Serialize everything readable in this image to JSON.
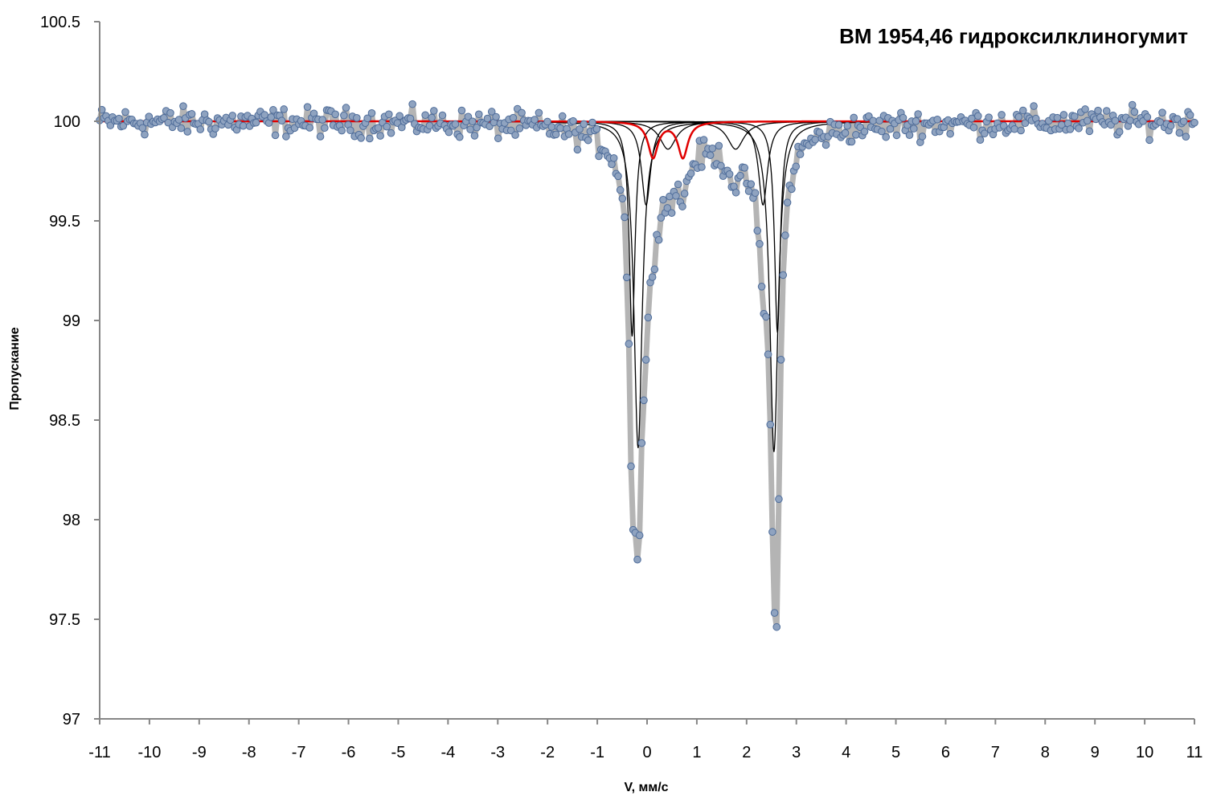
{
  "chart_data": {
    "type": "scatter",
    "title": "BM 1954,46 гидроксилклиногумит",
    "xlabel": "V, мм/с",
    "ylabel": "Пропускание",
    "xlim": [
      -11,
      11
    ],
    "ylim": [
      97,
      100.5
    ],
    "x_ticks": [
      "-11",
      "-10",
      "-9",
      "-8",
      "-7",
      "-6",
      "-5",
      "-4",
      "-3",
      "-2",
      "-1",
      "0",
      "1",
      "2",
      "3",
      "4",
      "5",
      "6",
      "7",
      "8",
      "9",
      "10",
      "11"
    ],
    "y_ticks": [
      "97",
      "97.5",
      "98",
      "98.5",
      "99",
      "99.5",
      "100",
      "100.5"
    ],
    "grid": false,
    "legend": "none",
    "baseline": 100.0,
    "noise_amplitude": 0.05,
    "series": [
      {
        "role": "components",
        "color": "#000000",
        "lorentzians": [
          {
            "center": -0.3,
            "depth": 1.08,
            "hwhm": 0.07
          },
          {
            "center": 2.62,
            "depth": 1.06,
            "hwhm": 0.07
          },
          {
            "center": -0.18,
            "depth": 1.64,
            "hwhm": 0.1
          },
          {
            "center": 2.55,
            "depth": 1.66,
            "hwhm": 0.1
          },
          {
            "center": -0.02,
            "depth": 0.42,
            "hwhm": 0.11
          },
          {
            "center": 2.33,
            "depth": 0.42,
            "hwhm": 0.11
          },
          {
            "center": 0.42,
            "depth": 0.14,
            "hwhm": 0.2
          },
          {
            "center": 1.78,
            "depth": 0.14,
            "hwhm": 0.2
          }
        ]
      },
      {
        "role": "component-red",
        "color": "#e00000",
        "lorentzians": [
          {
            "center": 0.12,
            "depth": 0.18,
            "hwhm": 0.12
          },
          {
            "center": 0.72,
            "depth": 0.18,
            "hwhm": 0.12
          }
        ]
      },
      {
        "role": "fit-envelope",
        "color": "#b4b4b4",
        "extra_broad": [
          {
            "center": 0.2,
            "depth": 0.12,
            "hwhm": 0.9
          },
          {
            "center": 2.2,
            "depth": 0.1,
            "hwhm": 0.9
          }
        ]
      },
      {
        "role": "experimental-points",
        "marker_fill": "#8fa3c0",
        "marker_stroke": "#4f6d9a",
        "x_range": [
          -11,
          11
        ],
        "count": 512
      }
    ]
  }
}
